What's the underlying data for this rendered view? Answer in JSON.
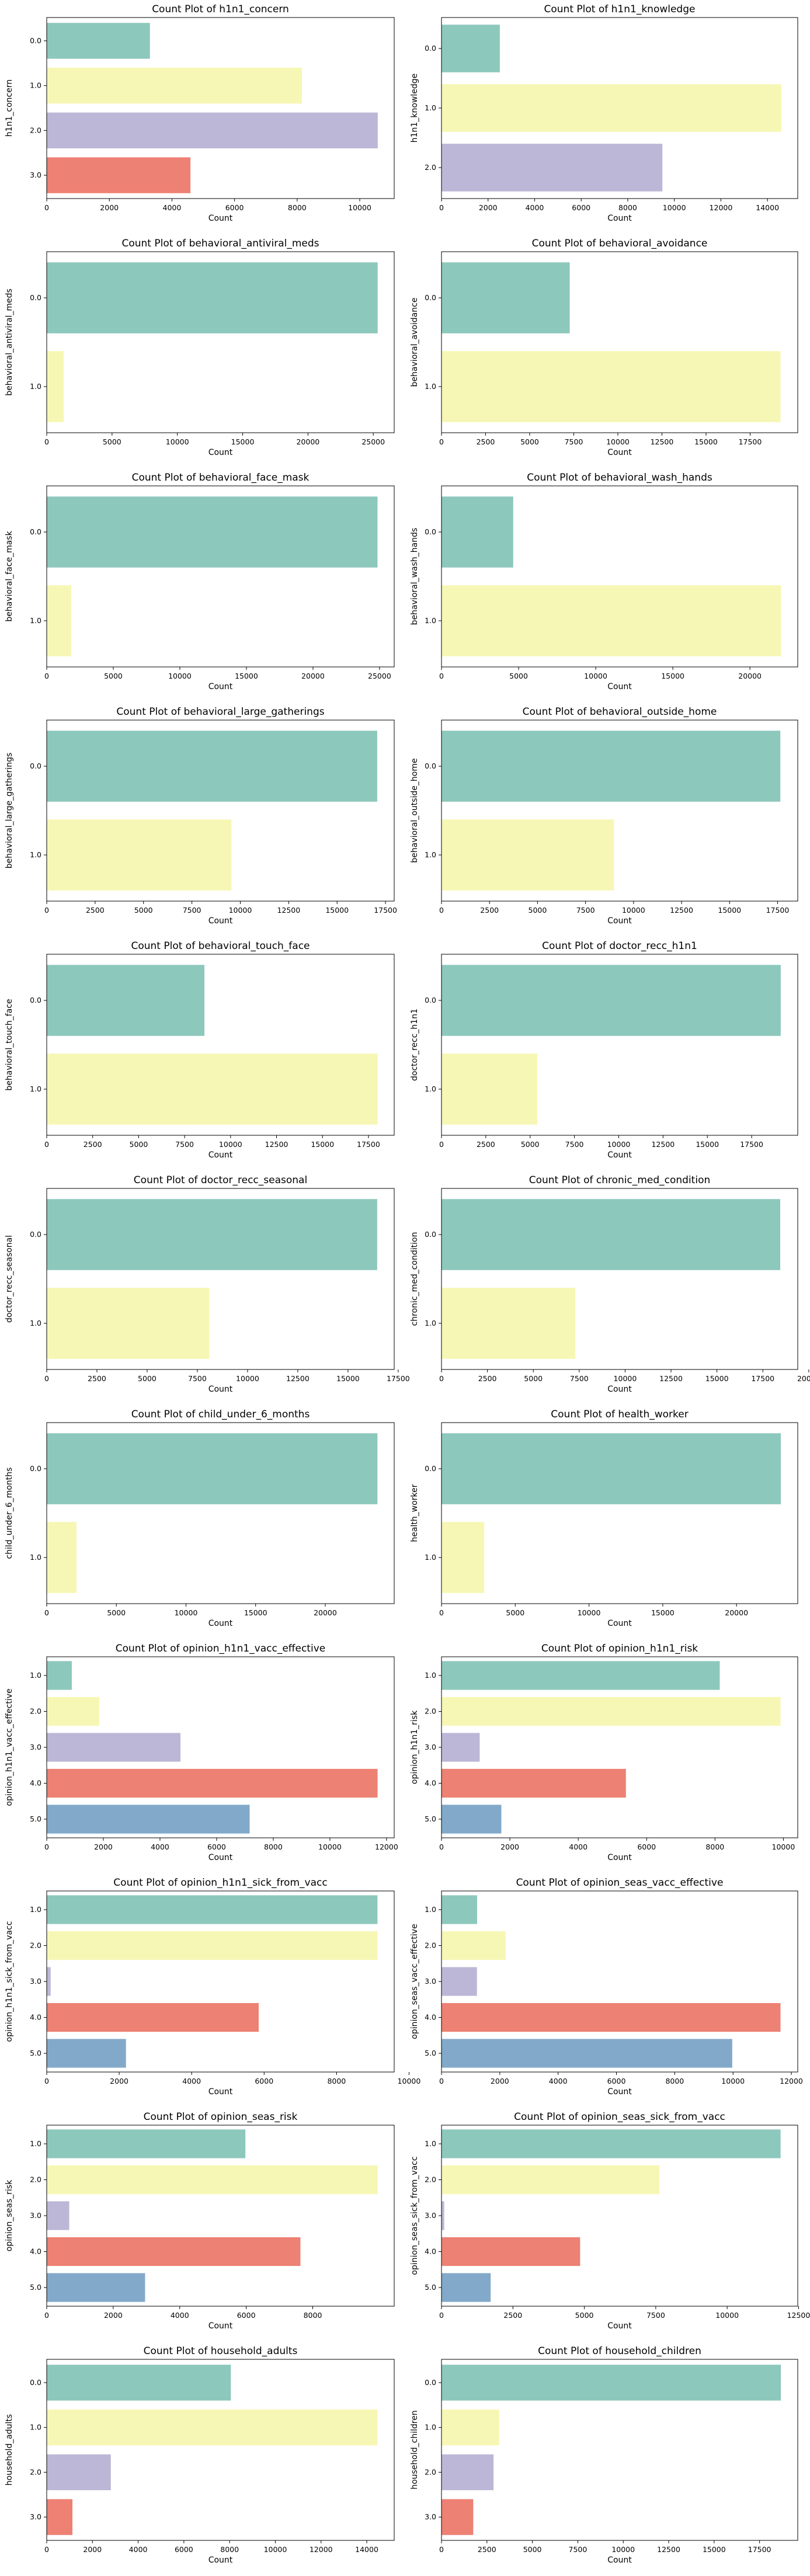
{
  "palette": [
    "#8dc8bc",
    "#f7f7b5",
    "#bcb7d6",
    "#ed8173",
    "#82a9c9"
  ],
  "chart_data": [
    {
      "type": "bar",
      "orientation": "horizontal",
      "title": "Count Plot of h1n1_concern",
      "xlabel": "Count",
      "ylabel": "h1n1_concern",
      "categories": [
        "0.0",
        "1.0",
        "2.0",
        "3.0"
      ],
      "values": [
        3296,
        8153,
        10575,
        4591
      ],
      "xlim": [
        0,
        11100
      ],
      "xticks": [
        0,
        2000,
        4000,
        6000,
        8000,
        10000
      ]
    },
    {
      "type": "bar",
      "orientation": "horizontal",
      "title": "Count Plot of h1n1_knowledge",
      "xlabel": "Count",
      "ylabel": "h1n1_knowledge",
      "categories": [
        "0.0",
        "1.0",
        "2.0"
      ],
      "values": [
        2506,
        14598,
        9487
      ],
      "xlim": [
        0,
        15300
      ],
      "xticks": [
        0,
        2000,
        4000,
        6000,
        8000,
        10000,
        12000,
        14000
      ]
    },
    {
      "type": "bar",
      "orientation": "horizontal",
      "title": "Count Plot of behavioral_antiviral_meds",
      "xlabel": "Count",
      "ylabel": "behavioral_antiviral_meds",
      "categories": [
        "0.0",
        "1.0"
      ],
      "values": [
        25335,
        1301
      ],
      "xlim": [
        0,
        26600
      ],
      "xticks": [
        0,
        5000,
        10000,
        15000,
        20000,
        25000
      ]
    },
    {
      "type": "bar",
      "orientation": "horizontal",
      "title": "Count Plot of behavioral_avoidance",
      "xlabel": "Count",
      "ylabel": "behavioral_avoidance",
      "categories": [
        "0.0",
        "1.0"
      ],
      "values": [
        7271,
        19228
      ],
      "xlim": [
        0,
        20200
      ],
      "xticks": [
        0,
        2500,
        5000,
        7500,
        10000,
        12500,
        15000,
        17500
      ]
    },
    {
      "type": "bar",
      "orientation": "horizontal",
      "title": "Count Plot of behavioral_face_mask",
      "xlabel": "Count",
      "ylabel": "behavioral_face_mask",
      "categories": [
        "0.0",
        "1.0"
      ],
      "values": [
        24847,
        1841
      ],
      "xlim": [
        0,
        26100
      ],
      "xticks": [
        0,
        5000,
        10000,
        15000,
        20000,
        25000
      ]
    },
    {
      "type": "bar",
      "orientation": "horizontal",
      "title": "Count Plot of behavioral_wash_hands",
      "xlabel": "Count",
      "ylabel": "behavioral_wash_hands",
      "categories": [
        "0.0",
        "1.0"
      ],
      "values": [
        4650,
        22015
      ],
      "xlim": [
        0,
        23100
      ],
      "xticks": [
        0,
        5000,
        10000,
        15000,
        20000
      ]
    },
    {
      "type": "bar",
      "orientation": "horizontal",
      "title": "Count Plot of behavioral_large_gatherings",
      "xlabel": "Count",
      "ylabel": "behavioral_large_gatherings",
      "categories": [
        "0.0",
        "1.0"
      ],
      "values": [
        17073,
        9547
      ],
      "xlim": [
        0,
        17950
      ],
      "xticks": [
        0,
        2500,
        5000,
        7500,
        10000,
        12500,
        15000,
        17500
      ]
    },
    {
      "type": "bar",
      "orientation": "horizontal",
      "title": "Count Plot of behavioral_outside_home",
      "xlabel": "Count",
      "ylabel": "behavioral_outside_home",
      "categories": [
        "0.0",
        "1.0"
      ],
      "values": [
        17644,
        8981
      ],
      "xlim": [
        0,
        18550
      ],
      "xticks": [
        0,
        2500,
        5000,
        7500,
        10000,
        12500,
        15000,
        17500
      ]
    },
    {
      "type": "bar",
      "orientation": "horizontal",
      "title": "Count Plot of behavioral_touch_face",
      "xlabel": "Count",
      "ylabel": "behavioral_touch_face",
      "categories": [
        "0.0",
        "1.0"
      ],
      "values": [
        8578,
        18001
      ],
      "xlim": [
        0,
        18900
      ],
      "xticks": [
        0,
        2500,
        5000,
        7500,
        10000,
        12500,
        15000,
        17500
      ]
    },
    {
      "type": "bar",
      "orientation": "horizontal",
      "title": "Count Plot of doctor_recc_h1n1",
      "xlabel": "Count",
      "ylabel": "doctor_recc_h1n1",
      "categories": [
        "0.0",
        "1.0"
      ],
      "values": [
        19139,
        5408
      ],
      "xlim": [
        0,
        20100
      ],
      "xticks": [
        0,
        2500,
        5000,
        7500,
        10000,
        12500,
        15000,
        17500
      ]
    },
    {
      "type": "bar",
      "orientation": "horizontal",
      "title": "Count Plot of doctor_recc_seasonal",
      "xlabel": "Count",
      "ylabel": "doctor_recc_seasonal",
      "categories": [
        "0.0",
        "1.0"
      ],
      "values": [
        16453,
        8094
      ],
      "xlim": [
        0,
        17300
      ],
      "xticks": [
        0,
        2500,
        5000,
        7500,
        10000,
        12500,
        15000,
        17500
      ]
    },
    {
      "type": "bar",
      "orientation": "horizontal",
      "title": "Count Plot of chronic_med_condition",
      "xlabel": "Count",
      "ylabel": "chronic_med_condition",
      "categories": [
        "0.0",
        "1.0"
      ],
      "values": [
        18446,
        7290
      ],
      "xlim": [
        0,
        19400
      ],
      "xticks": [
        0,
        2500,
        5000,
        7500,
        10000,
        12500,
        15000,
        17500,
        20000
      ]
    },
    {
      "type": "bar",
      "orientation": "horizontal",
      "title": "Count Plot of child_under_6_months",
      "xlabel": "Count",
      "ylabel": "child_under_6_months",
      "categories": [
        "0.0",
        "1.0"
      ],
      "values": [
        23749,
        2138
      ],
      "xlim": [
        0,
        24950
      ],
      "xticks": [
        0,
        5000,
        10000,
        15000,
        20000
      ]
    },
    {
      "type": "bar",
      "orientation": "horizontal",
      "title": "Count Plot of health_worker",
      "xlabel": "Count",
      "ylabel": "health_worker",
      "categories": [
        "0.0",
        "1.0"
      ],
      "values": [
        23004,
        2899
      ],
      "xlim": [
        0,
        24150
      ],
      "xticks": [
        0,
        5000,
        10000,
        15000,
        20000
      ]
    },
    {
      "type": "bar",
      "orientation": "horizontal",
      "title": "Count Plot of opinion_h1n1_vacc_effective",
      "xlabel": "Count",
      "ylabel": "opinion_h1n1_vacc_effective",
      "categories": [
        "1.0",
        "2.0",
        "3.0",
        "4.0",
        "5.0"
      ],
      "values": [
        886,
        1858,
        4723,
        11683,
        7166
      ],
      "xlim": [
        0,
        12270
      ],
      "xticks": [
        0,
        2000,
        4000,
        6000,
        8000,
        10000,
        12000
      ]
    },
    {
      "type": "bar",
      "orientation": "horizontal",
      "title": "Count Plot of opinion_h1n1_risk",
      "xlabel": "Count",
      "ylabel": "opinion_h1n1_risk",
      "categories": [
        "1.0",
        "2.0",
        "3.0",
        "4.0",
        "5.0"
      ],
      "values": [
        8139,
        9919,
        1117,
        5394,
        1750
      ],
      "xlim": [
        0,
        10420
      ],
      "xticks": [
        0,
        2000,
        4000,
        6000,
        8000,
        10000
      ]
    },
    {
      "type": "bar",
      "orientation": "horizontal",
      "title": "Count Plot of opinion_h1n1_sick_from_vacc",
      "xlabel": "Count",
      "ylabel": "opinion_h1n1_sick_from_vacc",
      "categories": [
        "1.0",
        "2.0",
        "3.0",
        "4.0",
        "5.0"
      ],
      "values": [
        9129,
        9129,
        108,
        5850,
        2187
      ],
      "xlim": [
        0,
        9590
      ],
      "xticks": [
        0,
        2000,
        4000,
        6000,
        8000,
        10000
      ]
    },
    {
      "type": "bar",
      "orientation": "horizontal",
      "title": "Count Plot of opinion_seas_vacc_effective",
      "xlabel": "Count",
      "ylabel": "opinion_seas_vacc_effective",
      "categories": [
        "1.0",
        "2.0",
        "3.0",
        "4.0",
        "5.0"
      ],
      "values": [
        1221,
        2206,
        1216,
        11629,
        9973
      ],
      "xlim": [
        0,
        12220
      ],
      "xticks": [
        0,
        2000,
        4000,
        6000,
        8000,
        10000,
        12000
      ]
    },
    {
      "type": "bar",
      "orientation": "horizontal",
      "title": "Count Plot of opinion_seas_risk",
      "xlabel": "Count",
      "ylabel": "opinion_seas_risk",
      "categories": [
        "1.0",
        "2.0",
        "3.0",
        "4.0",
        "5.0"
      ],
      "values": [
        5974,
        9954,
        677,
        7630,
        2958
      ],
      "xlim": [
        0,
        10450
      ],
      "xticks": [
        0,
        2000,
        4000,
        6000,
        8000
      ]
    },
    {
      "type": "bar",
      "orientation": "horizontal",
      "title": "Count Plot of opinion_seas_sick_from_vacc",
      "xlabel": "Count",
      "ylabel": "opinion_seas_sick_from_vacc",
      "categories": [
        "1.0",
        "2.0",
        "3.0",
        "4.0",
        "5.0"
      ],
      "values": [
        11870,
        7633,
        95,
        4852,
        1721
      ],
      "xlim": [
        0,
        12470
      ],
      "xticks": [
        0,
        2500,
        5000,
        7500,
        10000,
        12500
      ]
    },
    {
      "type": "bar",
      "orientation": "horizontal",
      "title": "Count Plot of household_adults",
      "xlabel": "Count",
      "ylabel": "household_adults",
      "categories": [
        "0.0",
        "1.0",
        "2.0",
        "3.0"
      ],
      "values": [
        8056,
        14474,
        2803,
        1125
      ],
      "xlim": [
        0,
        15200
      ],
      "xticks": [
        0,
        2000,
        4000,
        6000,
        8000,
        10000,
        12000,
        14000
      ]
    },
    {
      "type": "bar",
      "orientation": "horizontal",
      "title": "Count Plot of household_children",
      "xlabel": "Count",
      "ylabel": "household_children",
      "categories": [
        "0.0",
        "1.0",
        "2.0",
        "3.0"
      ],
      "values": [
        18672,
        3175,
        2864,
        1747
      ],
      "xlim": [
        0,
        19600
      ],
      "xticks": [
        0,
        2500,
        5000,
        7500,
        10000,
        12500,
        15000,
        17500
      ]
    }
  ]
}
